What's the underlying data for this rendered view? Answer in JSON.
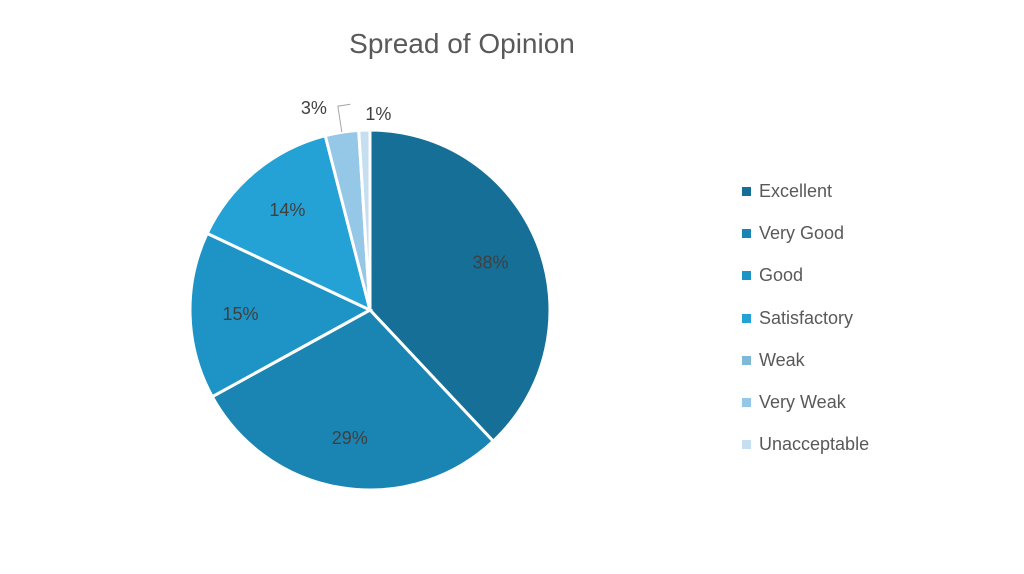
{
  "chart_data": {
    "type": "pie",
    "title": "Spread of Opinion",
    "categories": [
      "Excellent",
      "Very Good",
      "Good",
      "Satisfactory",
      "Weak",
      "Very Weak",
      "Unacceptable"
    ],
    "values": [
      38,
      29,
      15,
      14,
      0,
      3,
      1
    ],
    "data_labels": [
      "38%",
      "29%",
      "15%",
      "14%",
      "",
      "3%",
      "1%"
    ],
    "colors": [
      "#156F96",
      "#1A84B2",
      "#1D93C6",
      "#24A2D6",
      "#7EB9DA",
      "#95C7E6",
      "#C5DFF0"
    ],
    "legend_position": "right"
  }
}
